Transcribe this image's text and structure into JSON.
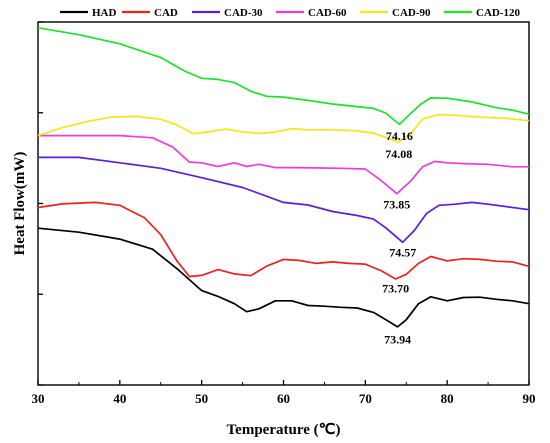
{
  "chart_data": {
    "type": "line",
    "title": "",
    "xlabel": "Temperature (℃)",
    "ylabel": "Heat Flow(mW)",
    "xlim": [
      30,
      90
    ],
    "xticks": [
      "30",
      "40",
      "50",
      "60",
      "70",
      "80",
      "90"
    ],
    "xtick_values": [
      30,
      40,
      50,
      60,
      70,
      80,
      90
    ],
    "ylim": [
      0,
      100
    ],
    "y_ticks_labeled": false,
    "grid": false,
    "legend_position": "top",
    "series": [
      {
        "name": "HAD",
        "color": "#000000",
        "x": [
          30,
          35,
          40,
          44,
          47,
          50,
          52,
          54,
          55.5,
          57,
          59,
          61,
          63,
          65,
          67,
          69,
          71,
          72.5,
          73.94,
          75,
          76.5,
          78,
          80,
          82,
          84,
          86,
          88,
          90
        ],
        "y": [
          43.2,
          42.1,
          40.2,
          37.4,
          32,
          26,
          24.4,
          22.4,
          20.2,
          21,
          23.2,
          23.2,
          21.9,
          21.7,
          21.4,
          21.2,
          20,
          18,
          16,
          18,
          22.4,
          24.3,
          23.2,
          24.1,
          24.2,
          23.6,
          23.2,
          22.4
        ]
      },
      {
        "name": "CAD",
        "color": "#e8231f",
        "x": [
          30,
          33,
          37,
          40,
          43,
          45,
          47,
          48.5,
          50,
          52,
          54,
          56,
          58,
          60,
          62,
          64,
          66,
          68,
          70,
          72,
          73.7,
          75,
          76.5,
          78,
          80,
          82,
          84,
          86,
          88,
          90
        ],
        "y": [
          48.9,
          49.9,
          50.3,
          49.5,
          46.1,
          41.4,
          34.1,
          29.9,
          30.2,
          31.8,
          30.6,
          30.1,
          32.8,
          34.6,
          34.3,
          33.5,
          33.9,
          33.5,
          33.3,
          31.4,
          29.2,
          30.5,
          33.5,
          35.4,
          34.2,
          34.8,
          34.6,
          34.1,
          33.9,
          32.7
        ]
      },
      {
        "name": "CAD-30",
        "color": "#5a1fd6",
        "x": [
          30,
          35,
          40,
          45,
          50,
          55,
          60,
          63,
          66,
          69,
          71,
          72.5,
          74.57,
          76,
          77.5,
          79,
          81,
          83,
          85,
          87,
          90
        ],
        "y": [
          62.7,
          62.7,
          61.2,
          59.7,
          57.1,
          54.4,
          50.3,
          49.6,
          47.8,
          46.7,
          45.7,
          43.3,
          39.3,
          42.6,
          47.3,
          49.5,
          49.8,
          50.3,
          49.8,
          49.2,
          48.3
        ]
      },
      {
        "name": "CAD-60",
        "color": "#ec3dd8",
        "x": [
          30,
          35,
          40,
          44,
          46.5,
          48.5,
          50,
          52,
          54,
          55.5,
          57,
          59,
          61,
          64,
          67,
          70,
          72,
          73.85,
          75.5,
          77,
          78.5,
          80,
          82,
          85,
          88,
          90
        ],
        "y": [
          68.7,
          68.7,
          68.7,
          68.1,
          65.5,
          61.4,
          61.2,
          60.2,
          61.2,
          60.2,
          60.8,
          59.9,
          59.9,
          59.8,
          59.7,
          59.5,
          56.2,
          52.7,
          56.1,
          60.1,
          61.6,
          61.2,
          61.0,
          60.8,
          60.1,
          60.1
        ]
      },
      {
        "name": "CAD-90",
        "color": "#f6e51a",
        "x": [
          30,
          33,
          36,
          39,
          42,
          45,
          47,
          49,
          51,
          53,
          55,
          57,
          59,
          61,
          63,
          66,
          69,
          71,
          72.5,
          74.08,
          75.5,
          77,
          79,
          81,
          84,
          87,
          90
        ],
        "y": [
          68.7,
          70.9,
          72.6,
          73.8,
          74,
          73.2,
          71.6,
          69.2,
          69.8,
          70.5,
          69.7,
          69.3,
          69.7,
          70.6,
          70.3,
          70.3,
          70,
          69.4,
          68.2,
          66.9,
          69.1,
          73.3,
          74.5,
          74.3,
          73.8,
          73.5,
          72.8
        ]
      },
      {
        "name": "CAD-120",
        "color": "#1ee22b",
        "x": [
          30,
          35,
          40,
          45,
          48,
          50,
          52,
          54,
          56,
          58,
          60,
          63,
          66,
          69,
          71,
          72.5,
          74.16,
          75.5,
          76.8,
          78,
          80,
          83,
          86,
          88,
          90
        ],
        "y": [
          98.4,
          96.5,
          94,
          90.2,
          86.4,
          84.5,
          84.2,
          83.3,
          80.9,
          79.5,
          79.3,
          78.4,
          77.4,
          76.7,
          76.2,
          74.9,
          71.8,
          74.7,
          77.4,
          79.1,
          79,
          78,
          76.4,
          75.7,
          74.6
        ]
      }
    ],
    "annotations": [
      {
        "text": "74.16",
        "x": 74.16,
        "y": 67.5
      },
      {
        "text": "74.08",
        "x": 74.08,
        "y": 62.6
      },
      {
        "text": "73.85",
        "x": 73.85,
        "y": 48.6
      },
      {
        "text": "74.57",
        "x": 74.57,
        "y": 35.4
      },
      {
        "text": "73.70",
        "x": 73.7,
        "y": 25.5
      },
      {
        "text": "73.94",
        "x": 73.94,
        "y": 11.5
      }
    ]
  }
}
